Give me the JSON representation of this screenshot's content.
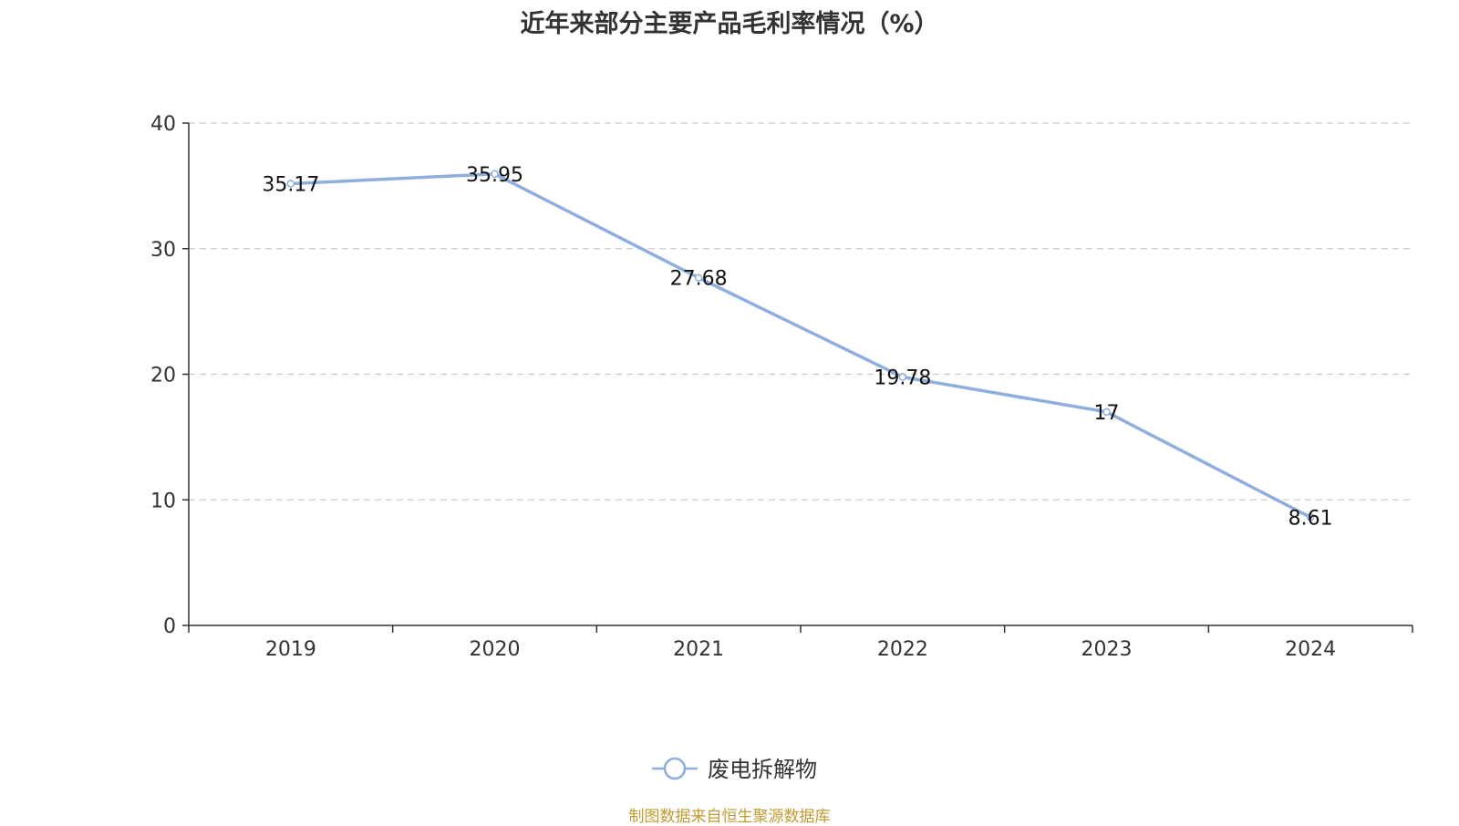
{
  "colors": {
    "series": "#8eaedc",
    "source": "#c29a30",
    "grid": "#cccccc",
    "axis": "#333333"
  },
  "chart_data": {
    "type": "line",
    "title": "近年来部分主要产品毛利率情况（%）",
    "categories": [
      "2019",
      "2020",
      "2021",
      "2022",
      "2023",
      "2024"
    ],
    "series": [
      {
        "name": "废电拆解物",
        "values": [
          35.17,
          35.95,
          27.68,
          19.78,
          17,
          8.61
        ],
        "labels": [
          "35.17",
          "35.95",
          "27.68",
          "19.78",
          "17",
          "8.61"
        ]
      }
    ],
    "ylim": [
      0,
      40
    ],
    "yticks": [
      0,
      10,
      20,
      30,
      40
    ],
    "grid": true,
    "legend": "bottom-center",
    "xlabel": "",
    "ylabel": ""
  },
  "footer": {
    "source": "制图数据来自恒生聚源数据库"
  }
}
